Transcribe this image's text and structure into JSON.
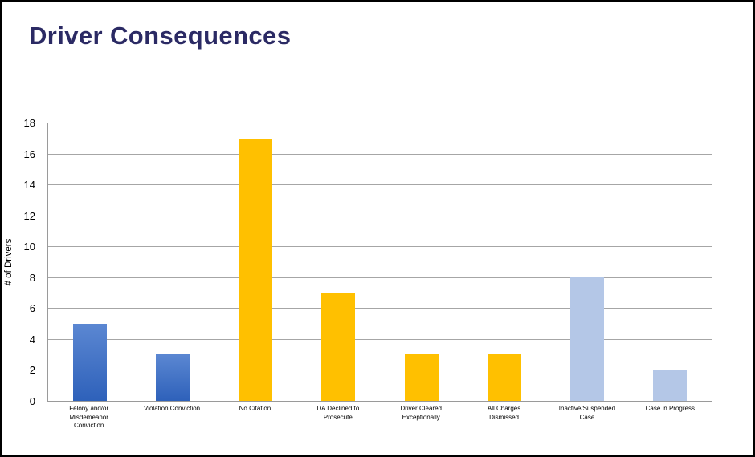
{
  "page": {
    "title": "Driver Consequences"
  },
  "styles": {
    "title_color": "#2b2a64",
    "gridline_color": "#a6a6a6",
    "axis_color": "#9a9a9a",
    "background": "#ffffff",
    "frame_border_color": "#000000"
  },
  "chart_data": {
    "type": "bar",
    "title": "Driver Consequences",
    "xlabel": "",
    "ylabel": "# of Drivers",
    "categories": [
      "Felony and/or\nMisdemeanor\nConviction",
      "Violation Conviction",
      "No Citation",
      "DA Declined to\nProsecute",
      "Driver Cleared\nExceptionally",
      "All Charges\nDismissed",
      "Inactive/Suspended\nCase",
      "Case in Progress"
    ],
    "values": [
      5,
      3,
      17,
      7,
      3,
      3,
      8,
      2
    ],
    "ylim": [
      0,
      18
    ],
    "yticks": [
      0,
      2,
      4,
      6,
      8,
      10,
      12,
      14,
      16,
      18
    ],
    "grid": "horizontal",
    "legend": "none",
    "bar_fills": [
      {
        "top": "#5b87d2",
        "bottom": "#2e61ba"
      },
      {
        "top": "#5b87d2",
        "bottom": "#2e61ba"
      },
      {
        "top": "#ffc000",
        "bottom": "#ffc000"
      },
      {
        "top": "#ffc000",
        "bottom": "#ffc000"
      },
      {
        "top": "#ffc000",
        "bottom": "#ffc000"
      },
      {
        "top": "#ffc000",
        "bottom": "#ffc000"
      },
      {
        "top": "#b4c7e7",
        "bottom": "#b4c7e7"
      },
      {
        "top": "#b4c7e7",
        "bottom": "#b4c7e7"
      }
    ]
  }
}
